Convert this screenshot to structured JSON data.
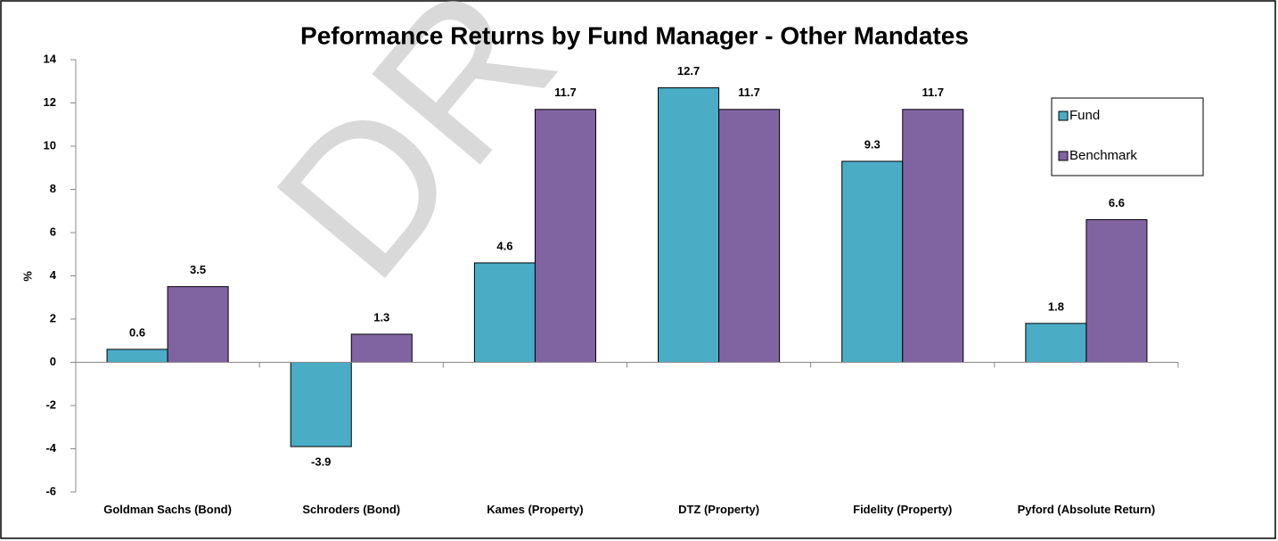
{
  "chart_data": {
    "type": "bar",
    "title": "Peformance Returns by Fund Manager - Other Mandates",
    "watermark": "DR",
    "y_label": "%",
    "categories": [
      "Goldman Sachs (Bond)",
      "Schroders (Bond)",
      "Kames (Property)",
      "DTZ (Property)",
      "Fidelity (Property)",
      "Pyford (Absolute Return)"
    ],
    "series": [
      {
        "name": "Fund",
        "color": "#4bacc6",
        "values": [
          0.6,
          -3.9,
          4.6,
          12.7,
          9.3,
          1.8
        ]
      },
      {
        "name": "Benchmark",
        "color": "#8064a2",
        "values": [
          3.5,
          1.3,
          11.7,
          11.7,
          11.7,
          6.6
        ]
      }
    ],
    "ylim": [
      -6,
      14
    ],
    "yticks": [
      -6,
      -4,
      -2,
      0,
      2,
      4,
      6,
      8,
      10,
      12,
      14
    ],
    "legend": "right"
  }
}
